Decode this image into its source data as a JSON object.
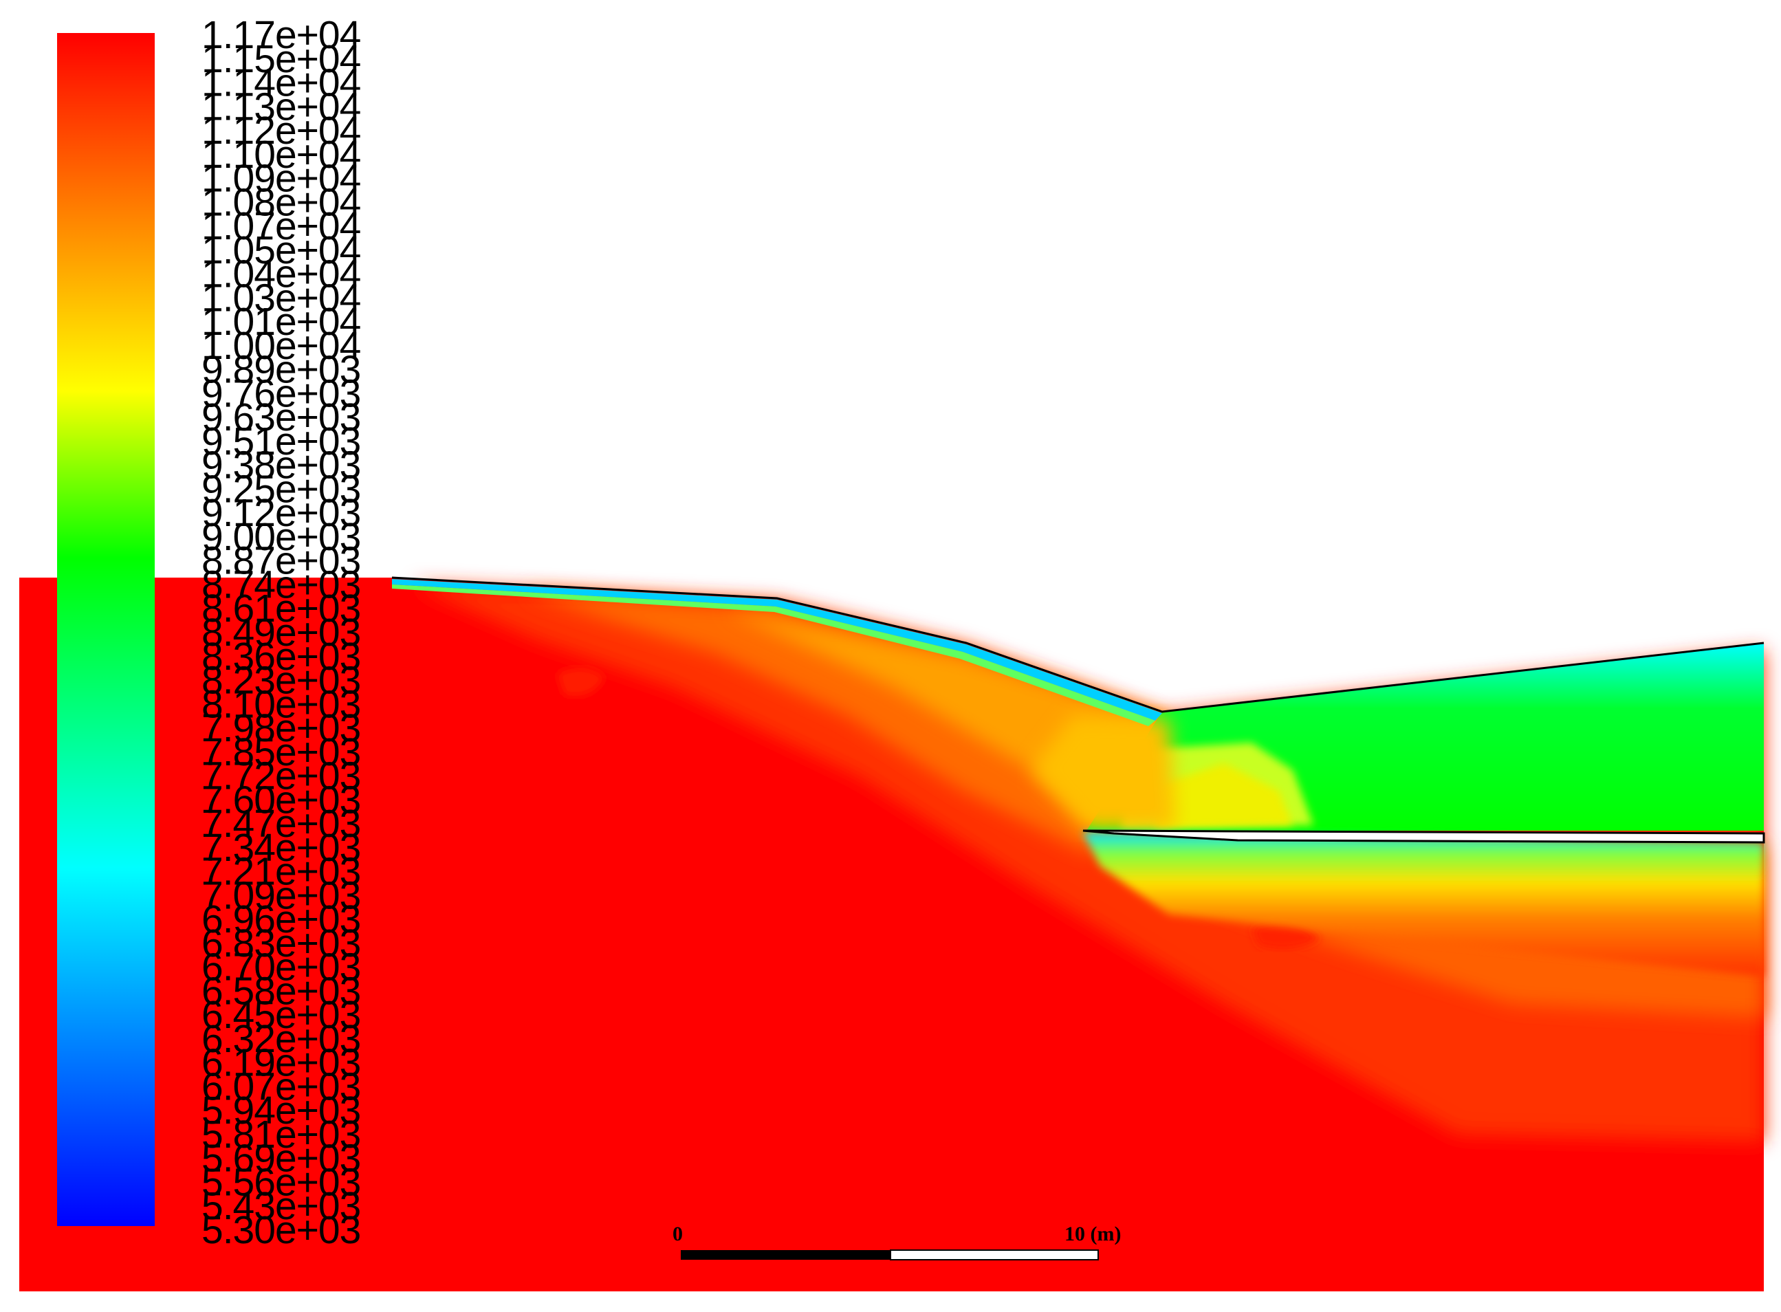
{
  "colorbar": {
    "levels": [
      "1.17e+04",
      "1.15e+04",
      "1.14e+04",
      "1.13e+04",
      "1.12e+04",
      "1.10e+04",
      "1.09e+04",
      "1.08e+04",
      "1.07e+04",
      "1.05e+04",
      "1.04e+04",
      "1.03e+04",
      "1.01e+04",
      "1.00e+04",
      "9.89e+03",
      "9.76e+03",
      "9.63e+03",
      "9.51e+03",
      "9.38e+03",
      "9.25e+03",
      "9.12e+03",
      "9.00e+03",
      "8.87e+03",
      "8.74e+03",
      "8.61e+03",
      "8.49e+03",
      "8.36e+03",
      "8.23e+03",
      "8.10e+03",
      "7.98e+03",
      "7.85e+03",
      "7.72e+03",
      "7.60e+03",
      "7.47e+03",
      "7.34e+03",
      "7.21e+03",
      "7.09e+03",
      "6.96e+03",
      "6.83e+03",
      "6.70e+03",
      "6.58e+03",
      "6.45e+03",
      "6.32e+03",
      "6.19e+03",
      "6.07e+03",
      "5.94e+03",
      "5.81e+03",
      "5.69e+03",
      "5.56e+03",
      "5.43e+03",
      "5.30e+03"
    ],
    "max": 11700,
    "min": 5300,
    "gradient_colors": [
      "#ff0000",
      "#ff8000",
      "#ffff00",
      "#00ff00",
      "#00ffff",
      "#0080ff",
      "#0000ff"
    ]
  },
  "scale_bar": {
    "start_label": "0",
    "end_label": "10 (m)"
  }
}
